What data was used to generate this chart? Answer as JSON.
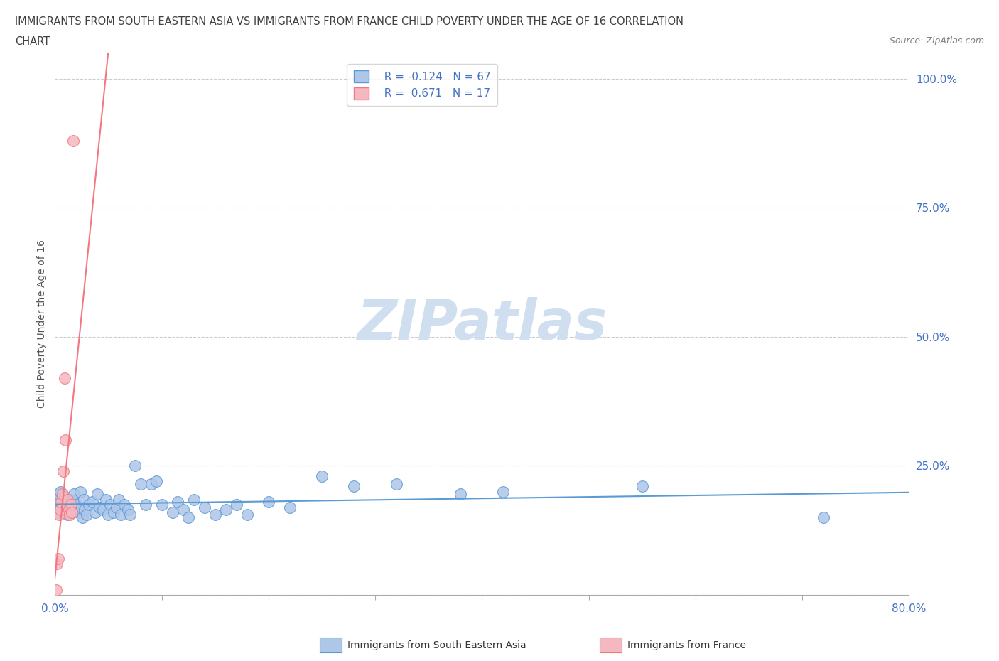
{
  "title_line1": "IMMIGRANTS FROM SOUTH EASTERN ASIA VS IMMIGRANTS FROM FRANCE CHILD POVERTY UNDER THE AGE OF 16 CORRELATION",
  "title_line2": "CHART",
  "source_text": "Source: ZipAtlas.com",
  "ylabel": "Child Poverty Under the Age of 16",
  "xlim": [
    0.0,
    0.8
  ],
  "ylim": [
    0.0,
    1.05
  ],
  "ytick_positions": [
    0.0,
    0.25,
    0.5,
    0.75,
    1.0
  ],
  "ytick_labels": [
    "",
    "25.0%",
    "50.0%",
    "75.0%",
    "100.0%"
  ],
  "blue_R": -0.124,
  "blue_N": 67,
  "pink_R": 0.671,
  "pink_N": 17,
  "blue_scatter_x": [
    0.001,
    0.002,
    0.003,
    0.004,
    0.005,
    0.006,
    0.007,
    0.008,
    0.009,
    0.01,
    0.012,
    0.013,
    0.014,
    0.015,
    0.016,
    0.017,
    0.018,
    0.019,
    0.02,
    0.022,
    0.024,
    0.025,
    0.026,
    0.027,
    0.028,
    0.03,
    0.032,
    0.035,
    0.038,
    0.04,
    0.042,
    0.045,
    0.048,
    0.05,
    0.052,
    0.055,
    0.058,
    0.06,
    0.062,
    0.065,
    0.068,
    0.07,
    0.075,
    0.08,
    0.085,
    0.09,
    0.095,
    0.1,
    0.11,
    0.115,
    0.12,
    0.125,
    0.13,
    0.14,
    0.15,
    0.16,
    0.17,
    0.18,
    0.2,
    0.22,
    0.25,
    0.28,
    0.32,
    0.38,
    0.42,
    0.55,
    0.72
  ],
  "blue_scatter_y": [
    0.175,
    0.185,
    0.16,
    0.195,
    0.2,
    0.17,
    0.18,
    0.165,
    0.19,
    0.175,
    0.155,
    0.17,
    0.185,
    0.16,
    0.175,
    0.18,
    0.195,
    0.165,
    0.175,
    0.16,
    0.2,
    0.17,
    0.15,
    0.185,
    0.165,
    0.155,
    0.175,
    0.18,
    0.16,
    0.195,
    0.17,
    0.165,
    0.185,
    0.155,
    0.175,
    0.16,
    0.17,
    0.185,
    0.155,
    0.175,
    0.165,
    0.155,
    0.25,
    0.215,
    0.175,
    0.215,
    0.22,
    0.175,
    0.16,
    0.18,
    0.165,
    0.15,
    0.185,
    0.17,
    0.155,
    0.165,
    0.175,
    0.155,
    0.18,
    0.17,
    0.23,
    0.21,
    0.215,
    0.195,
    0.2,
    0.21,
    0.15
  ],
  "pink_scatter_x": [
    0.001,
    0.002,
    0.003,
    0.004,
    0.005,
    0.006,
    0.007,
    0.008,
    0.009,
    0.01,
    0.011,
    0.012,
    0.013,
    0.014,
    0.015,
    0.016,
    0.017
  ],
  "pink_scatter_y": [
    0.01,
    0.06,
    0.07,
    0.155,
    0.165,
    0.18,
    0.195,
    0.24,
    0.42,
    0.3,
    0.175,
    0.185,
    0.165,
    0.155,
    0.175,
    0.16,
    0.88
  ],
  "blue_line_color": "#5b9bd5",
  "pink_line_color": "#f4777f",
  "blue_scatter_color": "#aec6e8",
  "pink_scatter_color": "#f4b8c1",
  "legend_text_color": "#4472c4",
  "grid_color": "#cccccc",
  "watermark_color": "#d0dff0",
  "axis_label_color": "#4472c4",
  "title_color": "#404040",
  "source_color": "#808080",
  "ylabel_color": "#555555"
}
